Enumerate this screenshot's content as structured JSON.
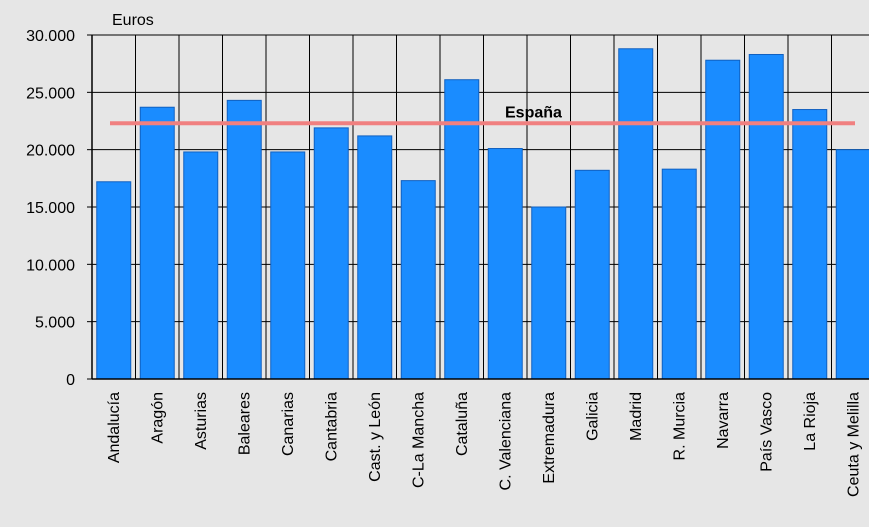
{
  "chart_data": {
    "type": "bar",
    "title": "",
    "xlabel": "",
    "ylabel": "",
    "unit_label": "Euros",
    "ylim": [
      0,
      30000
    ],
    "yticks": [
      0,
      5000,
      10000,
      15000,
      20000,
      25000,
      30000
    ],
    "ytick_labels": [
      "0",
      "5.000",
      "10.000",
      "15.000",
      "20.000",
      "25.000",
      "30.000"
    ],
    "grid": true,
    "categories": [
      "Andalucía",
      "Aragón",
      "Asturias",
      "Baleares",
      "Canarias",
      "Cantabria",
      "Cast. y León",
      "C-La Mancha",
      "Cataluña",
      "C. Valenciana",
      "Extremadura",
      "Galicia",
      "Madrid",
      "R. Murcia",
      "Navarra",
      "País Vasco",
      "La Rioja",
      "Ceuta y Melilla"
    ],
    "values": [
      17200,
      23700,
      19800,
      24300,
      19800,
      21900,
      21200,
      17300,
      26100,
      20100,
      15000,
      18200,
      28800,
      18300,
      27800,
      28300,
      23500,
      20000
    ],
    "reference_line": {
      "label": "España",
      "value": 22300
    },
    "colors": {
      "bar": "#1a8cff",
      "bar_edge": "#1060c0",
      "reference": "#f08080",
      "grid": "#000000",
      "background": "#e6e6e6"
    }
  }
}
